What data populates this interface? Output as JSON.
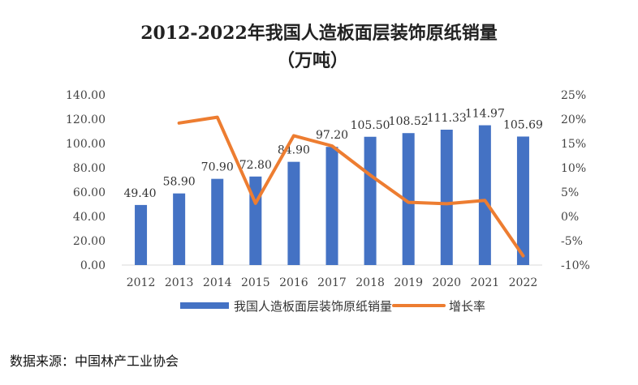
{
  "chart_data": {
    "type": "bar+line",
    "title": "2012-2022年我国人造板面层装饰原纸销量",
    "subtitle": "（万吨）",
    "categories": [
      "2012",
      "2013",
      "2014",
      "2015",
      "2016",
      "2017",
      "2018",
      "2019",
      "2020",
      "2021",
      "2022"
    ],
    "bar_series": {
      "name": "我国人造板面层装饰原纸销量",
      "values": [
        49.4,
        58.9,
        70.9,
        72.8,
        84.9,
        97.2,
        105.5,
        108.52,
        111.33,
        114.97,
        105.69
      ],
      "labels": [
        "49.40",
        "58.90",
        "70.90",
        "72.80",
        "84.90",
        "97.20",
        "105.50",
        "108.52",
        "111.33",
        "114.97",
        "105.69"
      ]
    },
    "line_series": {
      "name": "增长率",
      "values": [
        null,
        19.2,
        20.4,
        2.7,
        16.6,
        14.5,
        8.5,
        2.9,
        2.6,
        3.3,
        -8.1
      ]
    },
    "left_axis": {
      "ylim": [
        0,
        140
      ],
      "ticks": [
        "0.00",
        "20.00",
        "40.00",
        "60.00",
        "80.00",
        "100.00",
        "120.00",
        "140.00"
      ]
    },
    "right_axis": {
      "ylim": [
        -10,
        25
      ],
      "ticks": [
        "-10%",
        "-5%",
        "0%",
        "5%",
        "10%",
        "15%",
        "20%",
        "25%"
      ]
    },
    "colors": {
      "bar": "#4472C4",
      "line": "#ED7D31",
      "axis": "#D9D9D9"
    },
    "legend": {
      "position": "bottom",
      "entries": [
        "我国人造板面层装饰原纸销量",
        "增长率"
      ]
    },
    "grid": false
  },
  "source_note": "数据来源：中国林产工业协会"
}
